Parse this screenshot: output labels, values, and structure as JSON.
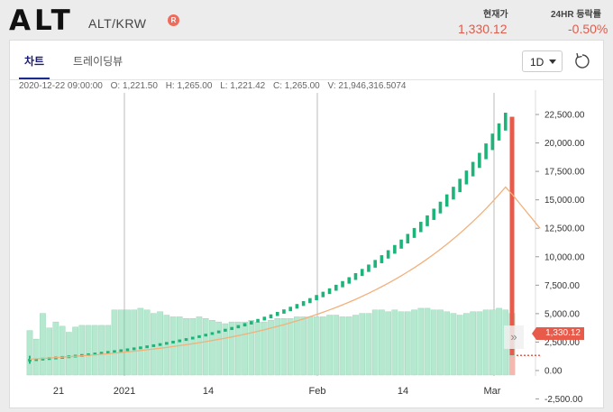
{
  "header": {
    "symbol": "ALT",
    "pair": "ALT/KRW",
    "badge": "R",
    "current_label": "현재가",
    "current_value": "1,330.12",
    "change_label": "24HR 등락률",
    "change_value": "-0.50%",
    "accent": "#e05a4a"
  },
  "tabs": [
    {
      "label": "차트",
      "active": true
    },
    {
      "label": "트레이딩뷰",
      "active": false
    }
  ],
  "toolbar": {
    "interval": "1D",
    "reset_icon": "refresh-icon"
  },
  "ohlc": {
    "date": "2020-12-22 09:00:00",
    "open": "O: 1,221.50",
    "high": "H: 1,265.00",
    "low": "L: 1,221.42",
    "close": "C: 1,265.00",
    "volume": "V: 21,946,316.5074"
  },
  "price_tag": "1,330.12",
  "chart_data": {
    "type": "candlestick",
    "y_ticks": [
      "22,500.00",
      "20,000.00",
      "17,500.00",
      "15,000.00",
      "12,500.00",
      "10,000.00",
      "7,500.00",
      "5,000.00",
      "2,500.00",
      "0.00",
      "-2,500.00"
    ],
    "ylim": [
      -2500,
      22500
    ],
    "x_ticks": [
      "21",
      "2021",
      "14",
      "Feb",
      "14",
      "Mar"
    ],
    "colors": {
      "up": "#1db47a",
      "down": "#e85a4a",
      "ma": "#f2b07b",
      "volume": "#b5e8cf"
    },
    "start_value": 1000,
    "peak_value": 22000,
    "last_value": 1330.12,
    "candle_count": 75
  }
}
